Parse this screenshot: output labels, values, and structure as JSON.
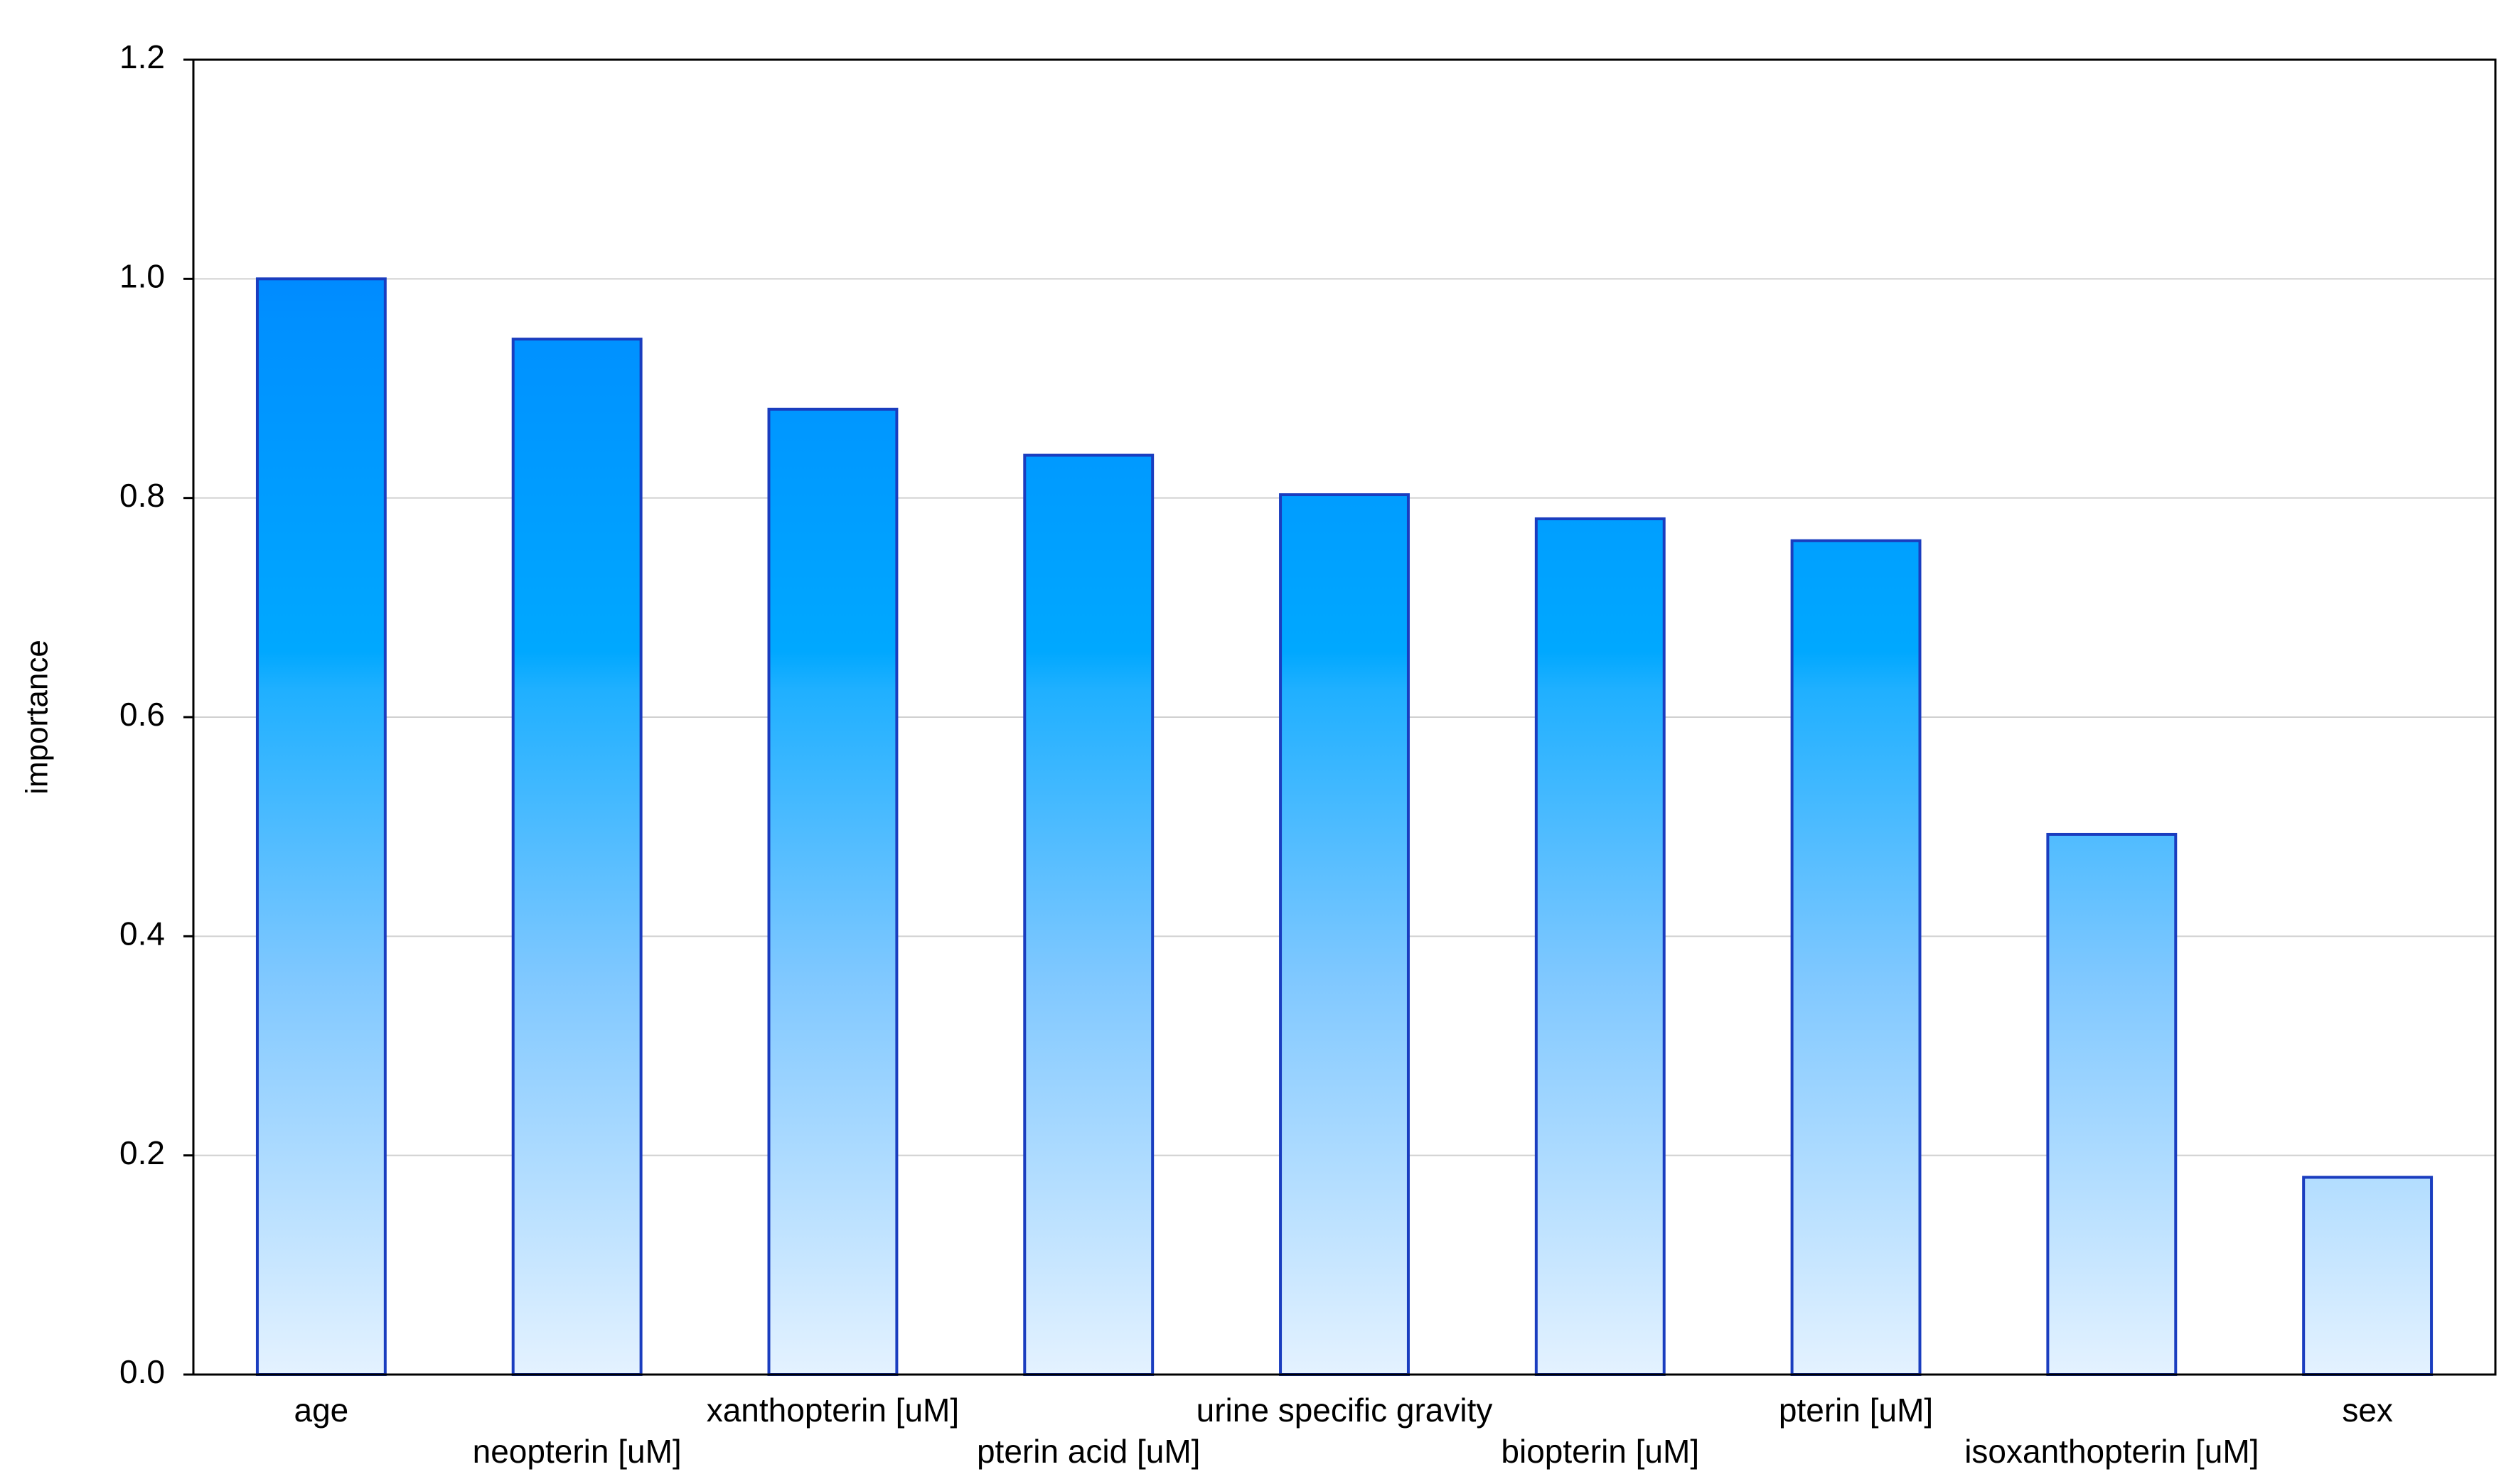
{
  "chart_data": {
    "type": "bar",
    "y_label": "importance",
    "categories": [
      "age",
      "neopterin [uM]",
      "xanthopterin [uM]",
      "pterin acid [uM]",
      "urine specific gravity",
      "biopterin [uM]",
      "pterin [uM]",
      "isoxanthopterin [uM]",
      "sex"
    ],
    "values": [
      1.0,
      0.945,
      0.881,
      0.839,
      0.803,
      0.781,
      0.761,
      0.493,
      0.18
    ],
    "ylim": [
      0,
      1.2
    ],
    "yticks": [
      {
        "value": 0,
        "label": "0.0"
      },
      0.2,
      0.4,
      0.6,
      0.8,
      {
        "value": 1,
        "label": "1.0"
      },
      1.2
    ],
    "grid": true
  }
}
